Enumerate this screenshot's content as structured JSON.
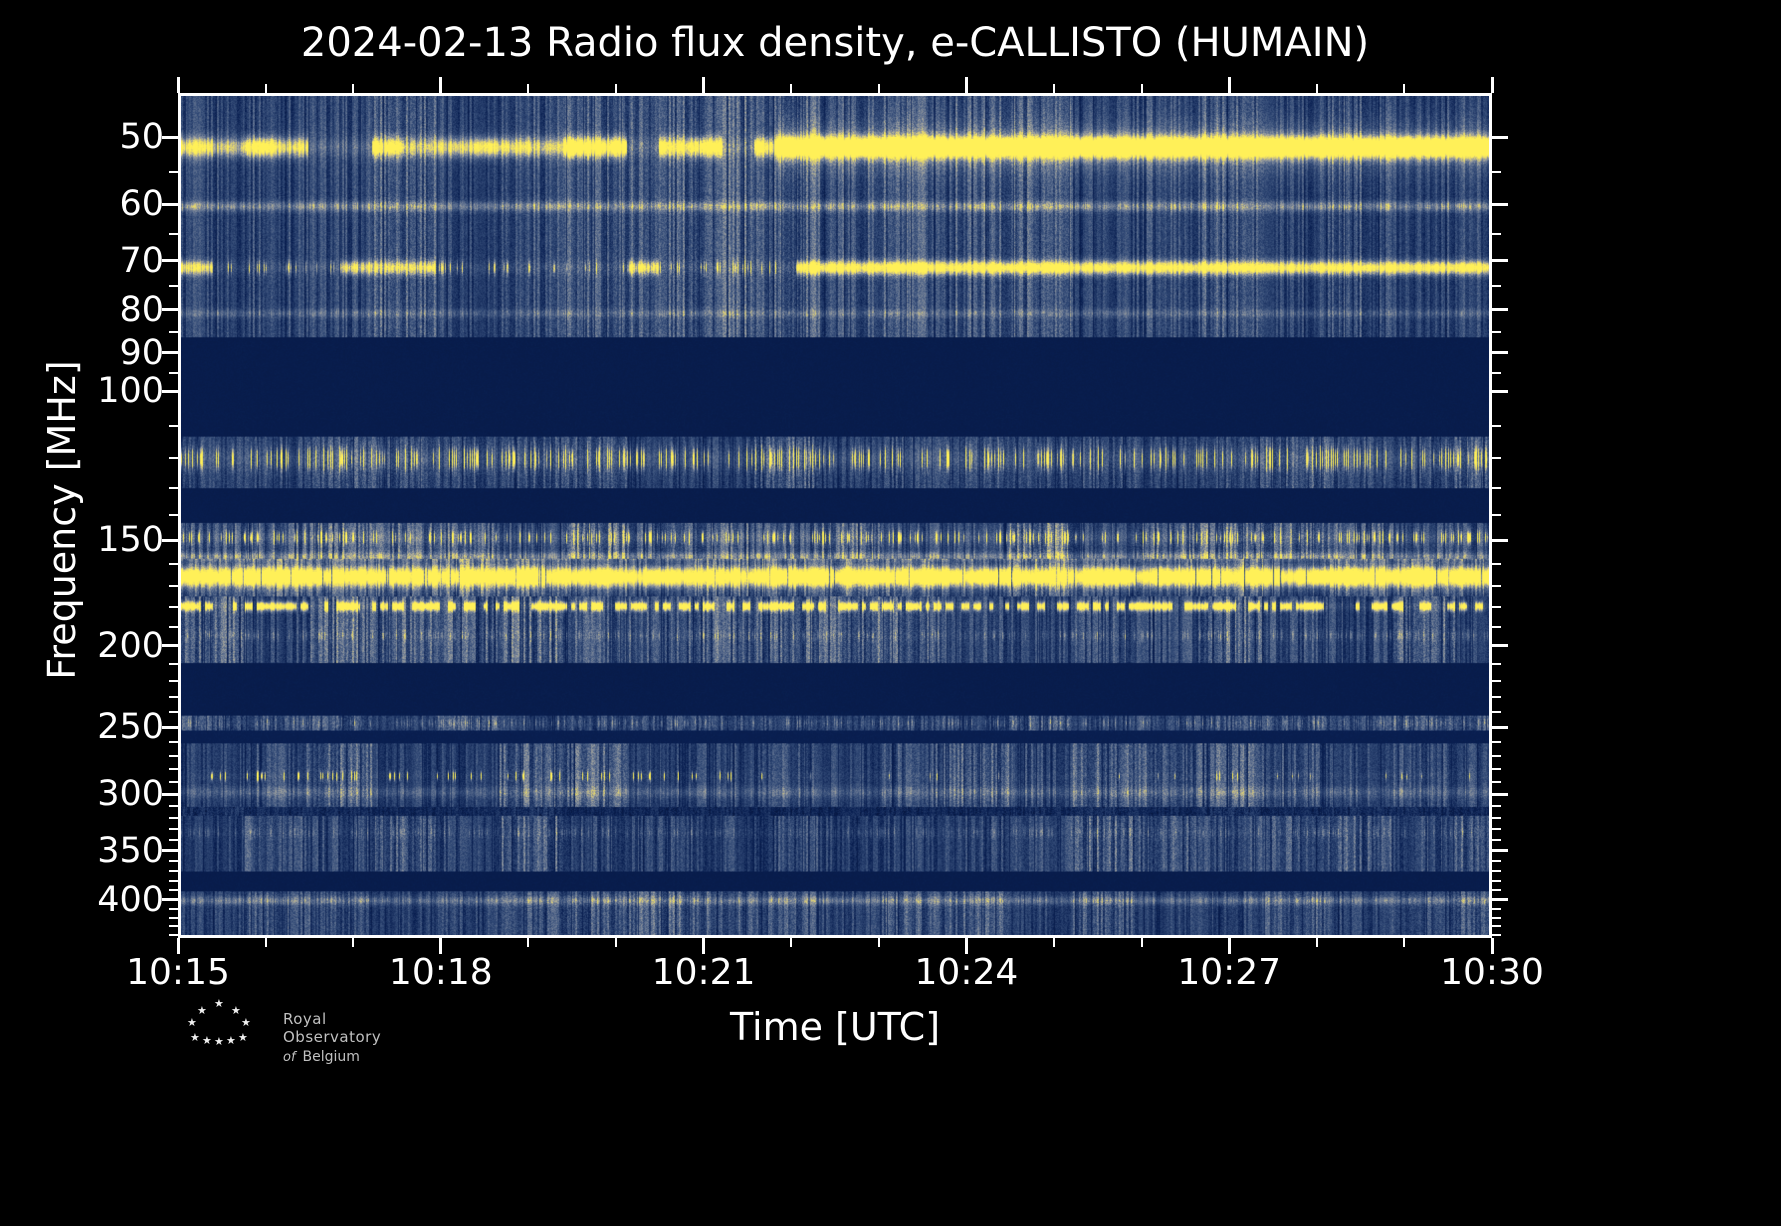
{
  "chart_data": {
    "type": "heatmap",
    "subtype": "radio-spectrogram",
    "title": "2024-02-13 Radio flux density, e-CALLISTO (HUMAIN)",
    "xlabel": "Time [UTC]",
    "ylabel": "Frequency [MHz]",
    "x_tick_labels": [
      "10:15",
      "10:18",
      "10:21",
      "10:24",
      "10:27",
      "10:30"
    ],
    "x_minor_ticks_per_major_interval": 3,
    "y_tick_labels": [
      50,
      60,
      70,
      80,
      90,
      100,
      150,
      200,
      250,
      300,
      350,
      400
    ],
    "y_minor_ticks": [
      55,
      65,
      75,
      85,
      95,
      110,
      120,
      130,
      140,
      160,
      170,
      180,
      190,
      210,
      220,
      230,
      240,
      260,
      270,
      280,
      290,
      310,
      320,
      330,
      340,
      360,
      370,
      380,
      390,
      410,
      420,
      430,
      440
    ],
    "y_scale": "log",
    "y_axis_inverted": true,
    "freq_range_mhz": [
      44.3,
      444
    ],
    "time_range_utc": [
      "10:15",
      "10:30"
    ],
    "legend": "none",
    "grid": false,
    "background_color": "#000000",
    "frame_color": "#ffffff",
    "colormap_stops": [
      [
        0.0,
        [
          7,
          24,
          66
        ]
      ],
      [
        0.08,
        [
          10,
          32,
          82
        ]
      ],
      [
        0.35,
        [
          52,
          76,
          120
        ]
      ],
      [
        0.55,
        [
          104,
          120,
          148
        ]
      ],
      [
        0.7,
        [
          160,
          162,
          158
        ]
      ],
      [
        0.82,
        [
          216,
          204,
          120
        ]
      ],
      [
        1.0,
        [
          255,
          240,
          88
        ]
      ]
    ],
    "noise_bands": [
      {
        "f1": 44.3,
        "f2": 86,
        "level": 0.33,
        "var": 0.14,
        "masked": false
      },
      {
        "f1": 86,
        "f2": 113,
        "level": 0.055,
        "var": 0.01,
        "masked": true
      },
      {
        "f1": 113,
        "f2": 130,
        "level": 0.3,
        "var": 0.12,
        "masked": false
      },
      {
        "f1": 130,
        "f2": 143,
        "level": 0.055,
        "var": 0.01,
        "masked": true
      },
      {
        "f1": 143,
        "f2": 158,
        "level": 0.38,
        "var": 0.17,
        "masked": false
      },
      {
        "f1": 158,
        "f2": 175,
        "level": 0.36,
        "var": 0.15,
        "masked": false
      },
      {
        "f1": 175,
        "f2": 210,
        "level": 0.34,
        "var": 0.16,
        "masked": false
      },
      {
        "f1": 210,
        "f2": 243,
        "level": 0.055,
        "var": 0.01,
        "masked": true
      },
      {
        "f1": 243,
        "f2": 253,
        "level": 0.3,
        "var": 0.12,
        "masked": false
      },
      {
        "f1": 253,
        "f2": 262,
        "level": 0.075,
        "var": 0.02,
        "masked": true
      },
      {
        "f1": 262,
        "f2": 312,
        "level": 0.33,
        "var": 0.14,
        "masked": false
      },
      {
        "f1": 312,
        "f2": 320,
        "level": 0.14,
        "var": 0.06,
        "masked": false
      },
      {
        "f1": 320,
        "f2": 373,
        "level": 0.31,
        "var": 0.14,
        "masked": false
      },
      {
        "f1": 373,
        "f2": 394,
        "level": 0.055,
        "var": 0.01,
        "masked": true
      },
      {
        "f1": 394,
        "f2": 444,
        "level": 0.32,
        "var": 0.13,
        "masked": false
      }
    ],
    "emission_lines": [
      {
        "f": 51,
        "wlog": 0.011,
        "peak": 1.1,
        "mode": "flare51",
        "note": "strong line, continuous bright after ~10:22"
      },
      {
        "f": 51,
        "wlog": 0.028,
        "peak": 0.3,
        "mode": "glow-late",
        "note": "broad glow around 51 MHz after ~10:22"
      },
      {
        "f": 60,
        "wlog": 0.006,
        "peak": 0.55,
        "mode": "steady-faint",
        "note": "faint line"
      },
      {
        "f": 71,
        "wlog": 0.008,
        "peak": 0.9,
        "mode": "flare71",
        "note": "intermittent, continuous after ~10:22"
      },
      {
        "f": 80.5,
        "wlog": 0.005,
        "peak": 0.3,
        "mode": "steady-faint",
        "note": "very faint line"
      },
      {
        "f": 120,
        "wlog": 0.013,
        "peak": 0.95,
        "mode": "speckle",
        "note": "dense bright speckles"
      },
      {
        "f": 149,
        "wlog": 0.007,
        "peak": 0.85,
        "mode": "speckle",
        "note": "yellow dots"
      },
      {
        "f": 157,
        "wlog": 0.005,
        "peak": 0.5,
        "mode": "steady-faint",
        "note": "grayish line"
      },
      {
        "f": 166,
        "wlog": 0.011,
        "peak": 1.05,
        "mode": "bright",
        "note": "brightest continuous band"
      },
      {
        "f": 180,
        "wlog": 0.005,
        "peak": 0.95,
        "mode": "dotted",
        "note": "dotted yellow line"
      },
      {
        "f": 195,
        "wlog": 0.006,
        "peak": 0.35,
        "mode": "speckle-faint",
        "note": "faint speckles"
      },
      {
        "f": 248,
        "wlog": 0.006,
        "peak": 0.4,
        "mode": "speckle-faint",
        "note": "faint speckles"
      },
      {
        "f": 287,
        "wlog": 0.005,
        "peak": 0.85,
        "mode": "dots-early",
        "note": "sparse yellow dots mostly before ~10:22"
      },
      {
        "f": 300,
        "wlog": 0.007,
        "peak": 0.3,
        "mode": "steady-faint",
        "note": "faint line"
      },
      {
        "f": 335,
        "wlog": 0.006,
        "peak": 0.3,
        "mode": "speckle-faint",
        "note": "faint speckles"
      },
      {
        "f": 404,
        "wlog": 0.005,
        "peak": 0.45,
        "mode": "steady-faint",
        "note": "faint line"
      }
    ]
  },
  "logo": {
    "line1": "Royal Observatory",
    "line2_prefix": "of",
    "line2_rest": "Belgium"
  }
}
